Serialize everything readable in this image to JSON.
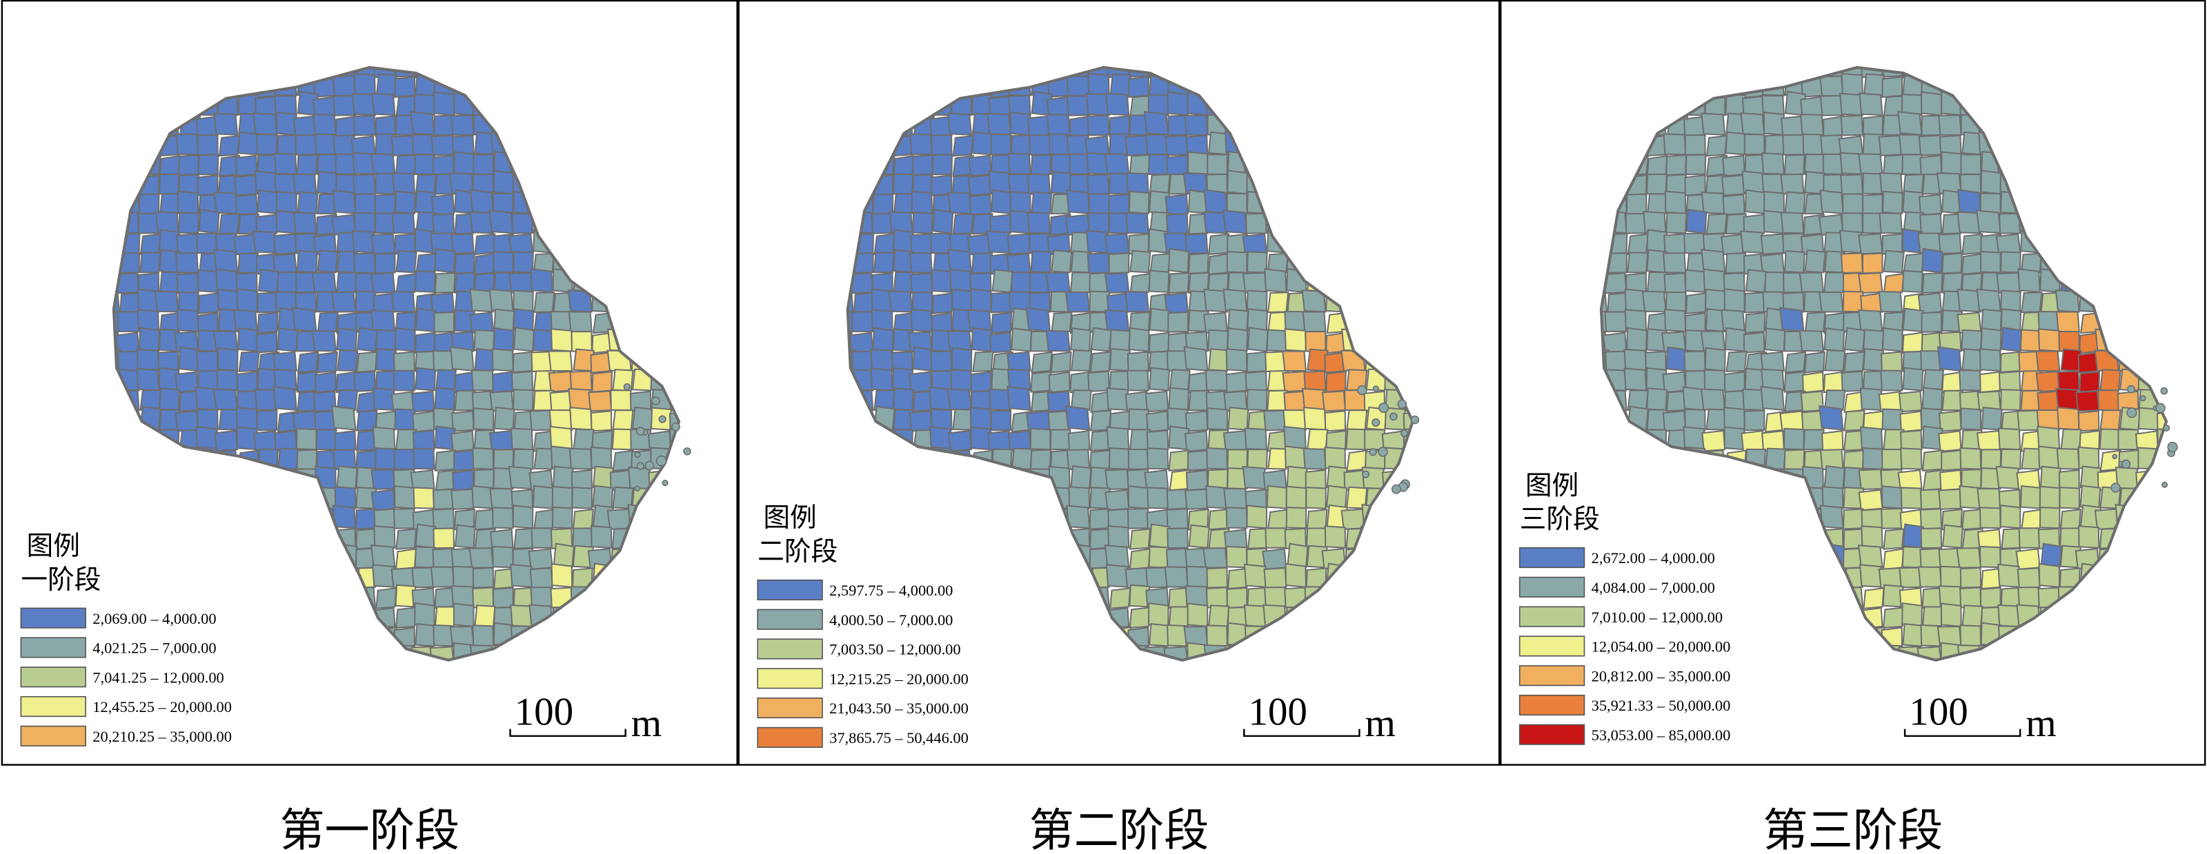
{
  "panels": [
    {
      "legend_title": "图例",
      "stage": "一阶段",
      "scale_label": "100",
      "scale_unit": "m",
      "caption": "第一阶段",
      "classes": [
        {
          "label": "2,069.00 – 4,000.00",
          "color": "#5a7fc4"
        },
        {
          "label": "4,021.25 – 7,000.00",
          "color": "#8aa8a8"
        },
        {
          "label": "7,041.25 – 12,000.00",
          "color": "#b9cc92"
        },
        {
          "label": "12,455.25 – 20,000.00",
          "color": "#eff08e"
        },
        {
          "label": "20,210.25 – 35,000.00",
          "color": "#f0b060"
        }
      ]
    },
    {
      "legend_title": "图例",
      "stage": "二阶段",
      "scale_label": "100",
      "scale_unit": "m",
      "caption": "第二阶段",
      "classes": [
        {
          "label": "2,597.75 – 4,000.00",
          "color": "#5a7fc4"
        },
        {
          "label": "4,000.50 – 7,000.00",
          "color": "#8aa8a8"
        },
        {
          "label": "7,003.50 – 12,000.00",
          "color": "#b9cc92"
        },
        {
          "label": "12,215.25 – 20,000.00",
          "color": "#eff08e"
        },
        {
          "label": "21,043.50 – 35,000.00",
          "color": "#f0b060"
        },
        {
          "label": "37,865.75 – 50,446.00",
          "color": "#e8803c"
        }
      ]
    },
    {
      "legend_title": "图例",
      "stage": "三阶段",
      "scale_label": "100",
      "scale_unit": "m",
      "caption": "第三阶段",
      "classes": [
        {
          "label": "2,672.00 – 4,000.00",
          "color": "#5a7fc4"
        },
        {
          "label": "4,084.00 – 7,000.00",
          "color": "#8aa8a8"
        },
        {
          "label": "7,010.00 – 12,000.00",
          "color": "#b9cc92"
        },
        {
          "label": "12,054.00 – 20,000.00",
          "color": "#eff08e"
        },
        {
          "label": "20,812.00 – 35,000.00",
          "color": "#f0b060"
        },
        {
          "label": "35,921.33 – 50,000.00",
          "color": "#e8803c"
        },
        {
          "label": "53,053.00 – 85,000.00",
          "color": "#c81414"
        }
      ]
    }
  ]
}
